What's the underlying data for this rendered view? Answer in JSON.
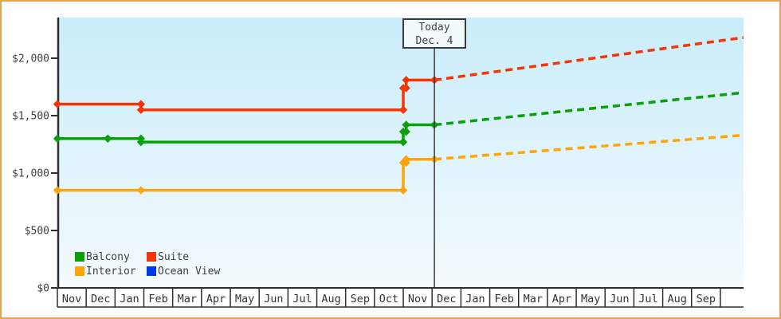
{
  "window": {
    "border_color": "#e9a257",
    "plot_bg_top": "#c9edfb",
    "plot_bg_bottom": "#f4fafd"
  },
  "today_marker": {
    "line1": "Today",
    "line2": "Dec. 4"
  },
  "chart_data": {
    "type": "line",
    "title": "",
    "xlabel": "",
    "ylabel": "",
    "grid": false,
    "legend_position": "bottom-left",
    "x_axis": {
      "unit": "month",
      "months": [
        "Nov",
        "Dec",
        "Jan",
        "Feb",
        "Mar",
        "Apr",
        "May",
        "Jun",
        "Jul",
        "Aug",
        "Sep",
        "Oct",
        "Nov",
        "Dec",
        "Jan",
        "Feb",
        "Mar",
        "Apr",
        "May",
        "Jun",
        "Jul",
        "Aug",
        "Sep"
      ]
    },
    "y_axis": {
      "min": 0,
      "max": 2350,
      "tick_values": [
        0,
        500,
        1000,
        1500,
        2000
      ],
      "tick_labels": [
        "$0",
        "$500",
        "$1,000",
        "$1,500",
        "$2,000"
      ]
    },
    "today": {
      "month_index": 13.08,
      "label": "Dec. 4"
    },
    "series": [
      {
        "name": "Balcony",
        "color": "#0aa00a",
        "points": [
          {
            "m": 0,
            "price": 1300
          },
          {
            "m": 1.75,
            "price": 1300
          },
          {
            "m": 2.9,
            "price": 1300
          },
          {
            "m": 2.9,
            "price": 1270
          },
          {
            "m": 12.0,
            "price": 1270
          },
          {
            "m": 12.0,
            "price": 1360
          },
          {
            "m": 12.1,
            "price": 1360
          },
          {
            "m": 12.1,
            "price": 1420
          },
          {
            "m": 13.08,
            "price": 1420
          }
        ],
        "projection": [
          {
            "m": 13.08,
            "price": 1420
          },
          {
            "m": 23.8,
            "price": 1700
          }
        ]
      },
      {
        "name": "Suite",
        "color": "#f53505",
        "points": [
          {
            "m": 0,
            "price": 1600
          },
          {
            "m": 2.9,
            "price": 1600
          },
          {
            "m": 2.9,
            "price": 1550
          },
          {
            "m": 12.0,
            "price": 1550
          },
          {
            "m": 12.0,
            "price": 1740
          },
          {
            "m": 12.1,
            "price": 1740
          },
          {
            "m": 12.1,
            "price": 1810
          },
          {
            "m": 13.08,
            "price": 1810
          }
        ],
        "projection": [
          {
            "m": 13.08,
            "price": 1810
          },
          {
            "m": 23.8,
            "price": 2180
          }
        ]
      },
      {
        "name": "Interior",
        "color": "#ffa507",
        "points": [
          {
            "m": 0,
            "price": 850
          },
          {
            "m": 2.9,
            "price": 850
          },
          {
            "m": 12.0,
            "price": 850
          },
          {
            "m": 12.0,
            "price": 1090
          },
          {
            "m": 12.1,
            "price": 1090
          },
          {
            "m": 12.1,
            "price": 1120
          },
          {
            "m": 13.08,
            "price": 1120
          }
        ],
        "projection": [
          {
            "m": 13.08,
            "price": 1120
          },
          {
            "m": 23.8,
            "price": 1330
          }
        ]
      },
      {
        "name": "Ocean View",
        "color": "#0038f0",
        "points": [],
        "projection": []
      }
    ]
  }
}
